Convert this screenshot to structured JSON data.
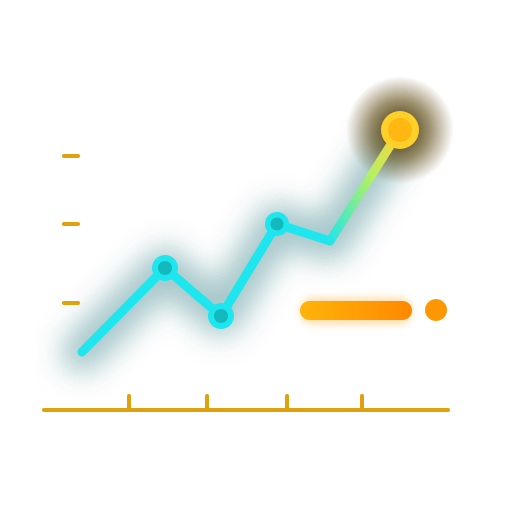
{
  "icon": {
    "name": "growth-line-chart-icon",
    "description_shown": false,
    "colors": {
      "axis": "#e8a20c",
      "axis_dark": "#b87400",
      "line": "#1ee0ea",
      "line_glow": "#0aa6b3",
      "point_inner": "#12b8b8",
      "highlight_point": "#ffc21a",
      "highlight_glow": "#6b4a00",
      "legend_bar_start": "#ffb000",
      "legend_bar_end": "#ff8a00",
      "legend_dot": "#ff9a00"
    },
    "series": {
      "point_count": 6,
      "trend": "upward",
      "highlighted_point": "last"
    },
    "x_axis_tick_count": 4,
    "y_axis_tick_count": 3,
    "legend": {
      "marker": "bar-and-dot"
    }
  }
}
